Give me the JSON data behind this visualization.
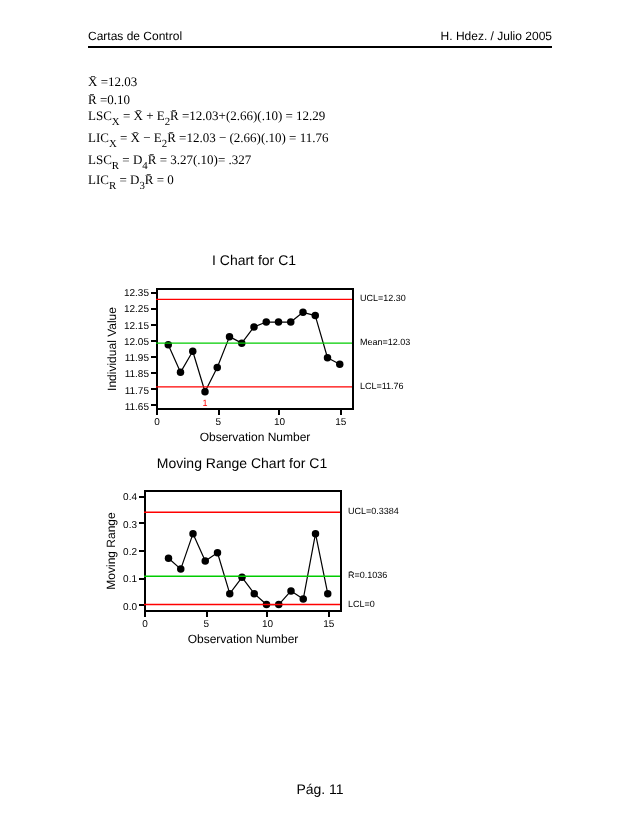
{
  "chart_data": [
    {
      "type": "other",
      "title": "Cartas de Control",
      "subtitle": "H. Hdez. / Julio 2005",
      "annotations": [
        "X̄ =12.03",
        "R̄ =0.10",
        "LSC$_{X}$ = X̄ + E$_{2}$R̄ =12.03+(2.66)(.10) = 12.29",
        "LIC$_{X}$ = X̄ − E$_{2}$R̄ =12.03 − (2.66)(.10) = 11.76",
        "LSC$_{R}$ = D$_{4}$R̄ = 3.27(.10)= .327",
        "LIC$_{R}$ = D$_{3}$R̄ = 0"
      ]
    },
    {
      "type": "line",
      "title": "I Chart for C1",
      "xlabel": "Observation Number",
      "ylabel": "Individual Value",
      "marker": "circle",
      "x": [
        1,
        2,
        3,
        4,
        5,
        6,
        7,
        8,
        9,
        10,
        11,
        12,
        13,
        14,
        15
      ],
      "series": [
        {
          "color": "#000000",
          "values": [
            12.02,
            11.85,
            11.98,
            11.73,
            11.88,
            12.07,
            12.03,
            12.13,
            12.16,
            12.16,
            12.16,
            12.22,
            12.2,
            11.94,
            11.9
          ]
        }
      ],
      "xlim": [
        0,
        16
      ],
      "xticks": [
        0,
        5,
        10,
        15
      ],
      "ylim": [
        11.63,
        12.37
      ],
      "yticks": [
        11.65,
        11.75,
        11.85,
        11.95,
        12.05,
        12.15,
        12.25,
        12.35
      ],
      "ref_lines": [
        {
          "axis": "y",
          "value": 12.3,
          "label": "UCL=12.30",
          "color": "#ff0000"
        },
        {
          "axis": "y",
          "value": 12.03,
          "label": "Mean=12.03",
          "color": "#00cc00"
        },
        {
          "axis": "y",
          "value": 11.76,
          "label": "LCL=11.76",
          "color": "#ff0000"
        }
      ],
      "annotations": [
        {
          "text": "1",
          "x": 4,
          "y": 11.73
        }
      ]
    },
    {
      "type": "line",
      "title": "Moving Range Chart for C1",
      "xlabel": "Observation Number",
      "ylabel": "Moving Range",
      "marker": "circle",
      "x": [
        2,
        3,
        4,
        5,
        6,
        7,
        8,
        9,
        10,
        11,
        12,
        13,
        14,
        15
      ],
      "series": [
        {
          "color": "#000000",
          "values": [
            0.17,
            0.13,
            0.26,
            0.16,
            0.19,
            0.04,
            0.1,
            0.04,
            0.0,
            0.0,
            0.05,
            0.02,
            0.26,
            0.04
          ]
        }
      ],
      "xlim": [
        0,
        16
      ],
      "xticks": [
        0,
        5,
        10,
        15
      ],
      "ylim": [
        -0.02,
        0.42
      ],
      "yticks": [
        {
          "value": 0,
          "label": "0.0"
        },
        {
          "value": 0.1,
          "label": "0.1"
        },
        {
          "value": 0.2,
          "label": "0.2"
        },
        {
          "value": 0.3,
          "label": "0.3"
        },
        {
          "value": 0.4,
          "label": "0.4"
        }
      ],
      "ref_lines": [
        {
          "axis": "y",
          "value": 0.3384,
          "label": "UCL=0.3384",
          "color": "#ff0000"
        },
        {
          "axis": "y",
          "value": 0.1036,
          "label": "R̄=0.1036",
          "color": "#00cc00"
        },
        {
          "axis": "y",
          "value": 0,
          "label": "LCL=0",
          "color": "#ff0000"
        }
      ],
      "annotations": [
        "Pág. 11"
      ]
    }
  ]
}
